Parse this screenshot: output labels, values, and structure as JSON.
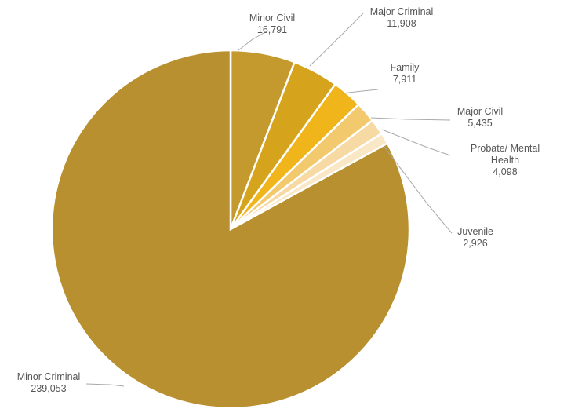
{
  "chart_data": {
    "type": "pie",
    "start_angle_deg": 0,
    "direction": "clockwise",
    "slices": [
      {
        "label": [
          "Minor Civil"
        ],
        "value": "16,791",
        "amount": 16791,
        "color": "#c49a2e"
      },
      {
        "label": [
          "Major Criminal"
        ],
        "value": "11,908",
        "amount": 11908,
        "color": "#d6a41c"
      },
      {
        "label": [
          "Family"
        ],
        "value": "7,911",
        "amount": 7911,
        "color": "#f0b51a"
      },
      {
        "label": [
          "Major Civil"
        ],
        "value": "5,435",
        "amount": 5435,
        "color": "#f3c96e"
      },
      {
        "label": [
          "Probate/ Mental",
          "Health"
        ],
        "value": "4,098",
        "amount": 4098,
        "color": "#f6d9a3"
      },
      {
        "label": [
          "Juvenile"
        ],
        "value": "2,926",
        "amount": 2926,
        "color": "#f9e7c6"
      },
      {
        "label": [
          "Minor Criminal"
        ],
        "value": "239,053",
        "amount": 239053,
        "color": "#b8902f"
      }
    ]
  }
}
